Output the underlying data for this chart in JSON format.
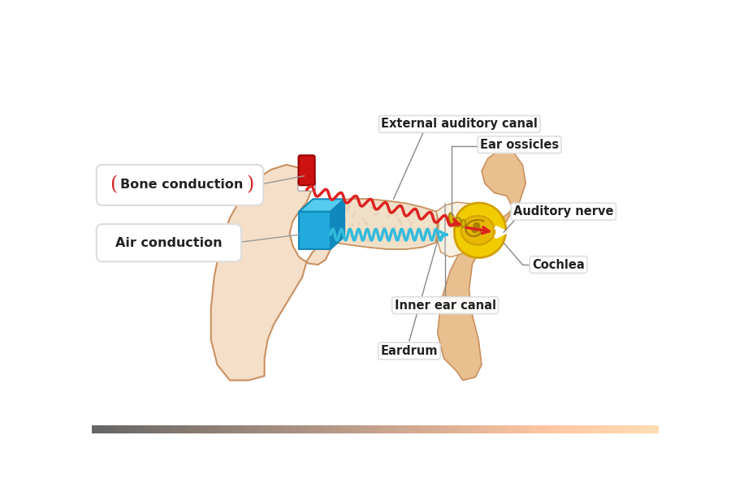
{
  "bg_color": "#ffffff",
  "ear_skin_light": "#f5dfc8",
  "ear_skin_mid": "#edc8a0",
  "ear_skin_dark": "#d4a878",
  "ear_outline": "#c89060",
  "canal_wall_color": "#e8c8a0",
  "inner_region_color": "#f0e0c8",
  "dotted_region_color": "#e8d0b8",
  "red_device_color": "#cc1111",
  "red_device_light": "#ee3333",
  "blue_device_color": "#22aadd",
  "blue_device_dark": "#1188bb",
  "blue_device_light": "#55ccee",
  "cochlea_yellow": "#f0cc00",
  "cochlea_orange": "#d4a000",
  "cochlea_dark": "#aa8000",
  "cochlea_inner": "#e8b800",
  "ossicle_color": "#d4b800",
  "nerve_white": "#f8f8f8",
  "skin_back": "#e8c090",
  "red_wave_color": "#dd2222",
  "blue_wave_color": "#33bbdd",
  "label_line_color": "#888888",
  "label_box_color": "#f0f0f0",
  "label_box_edge": "#cccccc",
  "bone_label": "Bone conduction",
  "air_label": "Air conduction",
  "ext_canal_label": "External auditory canal",
  "ear_ossicles_label": "Ear ossicles",
  "auditory_nerve_label": "Auditory nerve",
  "cochlea_label": "Cochlea",
  "inner_ear_label": "Inner ear canal",
  "eardrum_label": "Eardrum",
  "label_font_size": 10.5,
  "bone_font_size": 11.5,
  "air_font_size": 11.5
}
